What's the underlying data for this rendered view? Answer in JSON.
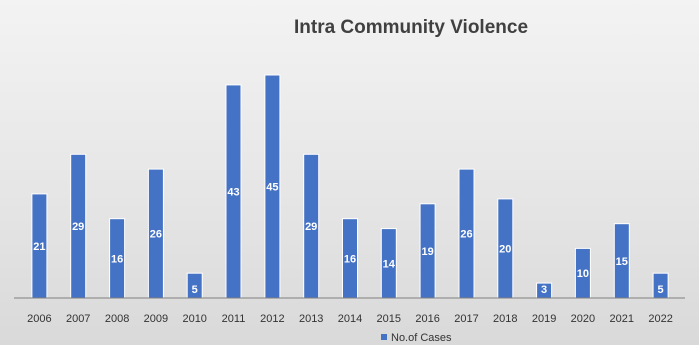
{
  "chart_data": {
    "type": "bar",
    "title": "Intra Community Violence",
    "categories": [
      "2006",
      "2007",
      "2008",
      "2009",
      "2010",
      "2011",
      "2012",
      "2013",
      "2014",
      "2015",
      "2016",
      "2017",
      "2018",
      "2019",
      "2020",
      "2021",
      "2022"
    ],
    "series": [
      {
        "name": "No.of Cases",
        "values": [
          21,
          29,
          16,
          26,
          5,
          43,
          45,
          29,
          16,
          14,
          19,
          26,
          20,
          3,
          10,
          15,
          5
        ],
        "color": "#4472c4"
      }
    ],
    "xlabel": "",
    "ylabel": "",
    "ylim": [
      0,
      46
    ],
    "grid": false,
    "legend": "bottom",
    "data_labels": true
  }
}
